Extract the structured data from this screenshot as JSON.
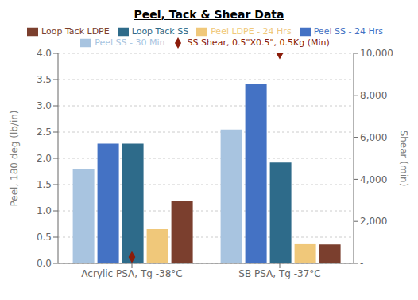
{
  "chart_data": {
    "type": "bar",
    "title": "Peel, Tack & Shear Data",
    "categories": [
      "Acrylic PSA, Tg -38°C",
      "SB PSA, Tg -37°C"
    ],
    "series": [
      {
        "name": "Peel SS - 30 Min",
        "color": "#a8c4e0",
        "values": [
          1.8,
          2.55
        ]
      },
      {
        "name": "Peel SS - 24 Hrs",
        "color": "#4472c4",
        "values": [
          2.28,
          3.42
        ]
      },
      {
        "name": "Loop Tack SS",
        "color": "#2e6b8a",
        "values": [
          2.28,
          1.92
        ]
      },
      {
        "name": "Peel LDPE - 24 Hrs",
        "color": "#f0c87a",
        "values": [
          0.65,
          0.38
        ]
      },
      {
        "name": "Loop Tack LDPE",
        "color": "#7b3f2e",
        "values": [
          1.18,
          0.36
        ]
      },
      {
        "name": "SS Shear, 0.5\"X0.5\", 0.5Kg (Min)",
        "color": "#8b1c0a",
        "values": [
          300,
          10000
        ],
        "type": "scatter",
        "marker": "diamond",
        "axis": "y2"
      }
    ],
    "ylabel": "Peel, 180 deg (lb/in)",
    "y2label": "Shear (min)",
    "ylim": [
      0.0,
      4.0
    ],
    "yticks": [
      {
        "value": 0,
        "label": "0.0"
      },
      0.5,
      {
        "value": 1,
        "label": "1.0"
      },
      1.5,
      {
        "value": 2,
        "label": "2.0"
      },
      2.5,
      {
        "value": 3,
        "label": "3.0"
      },
      3.5,
      {
        "value": 4,
        "label": "4.0"
      }
    ],
    "y2lim": [
      0,
      10000
    ],
    "y2ticks": [
      {
        "value": 0,
        "label": "-"
      },
      {
        "value": 2000,
        "label": "2,000"
      },
      {
        "value": 4000,
        "label": "4,000"
      },
      {
        "value": 6000,
        "label": "6,000"
      },
      {
        "value": 8000,
        "label": "8,000"
      },
      {
        "value": 10000,
        "label": "10,000"
      }
    ],
    "grid": true,
    "legend": "top"
  }
}
